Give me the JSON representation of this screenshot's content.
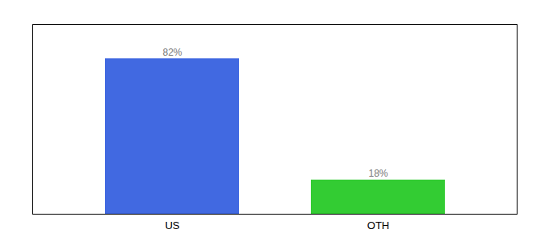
{
  "chart_data": {
    "type": "bar",
    "categories": [
      "US",
      "OTH"
    ],
    "values": [
      82,
      18
    ],
    "colors": [
      "#4169e1",
      "#33cc33"
    ],
    "value_labels": [
      "82%",
      "18%"
    ],
    "data_labels": true,
    "ylim": [
      0,
      100
    ],
    "tick_labels": "x"
  }
}
